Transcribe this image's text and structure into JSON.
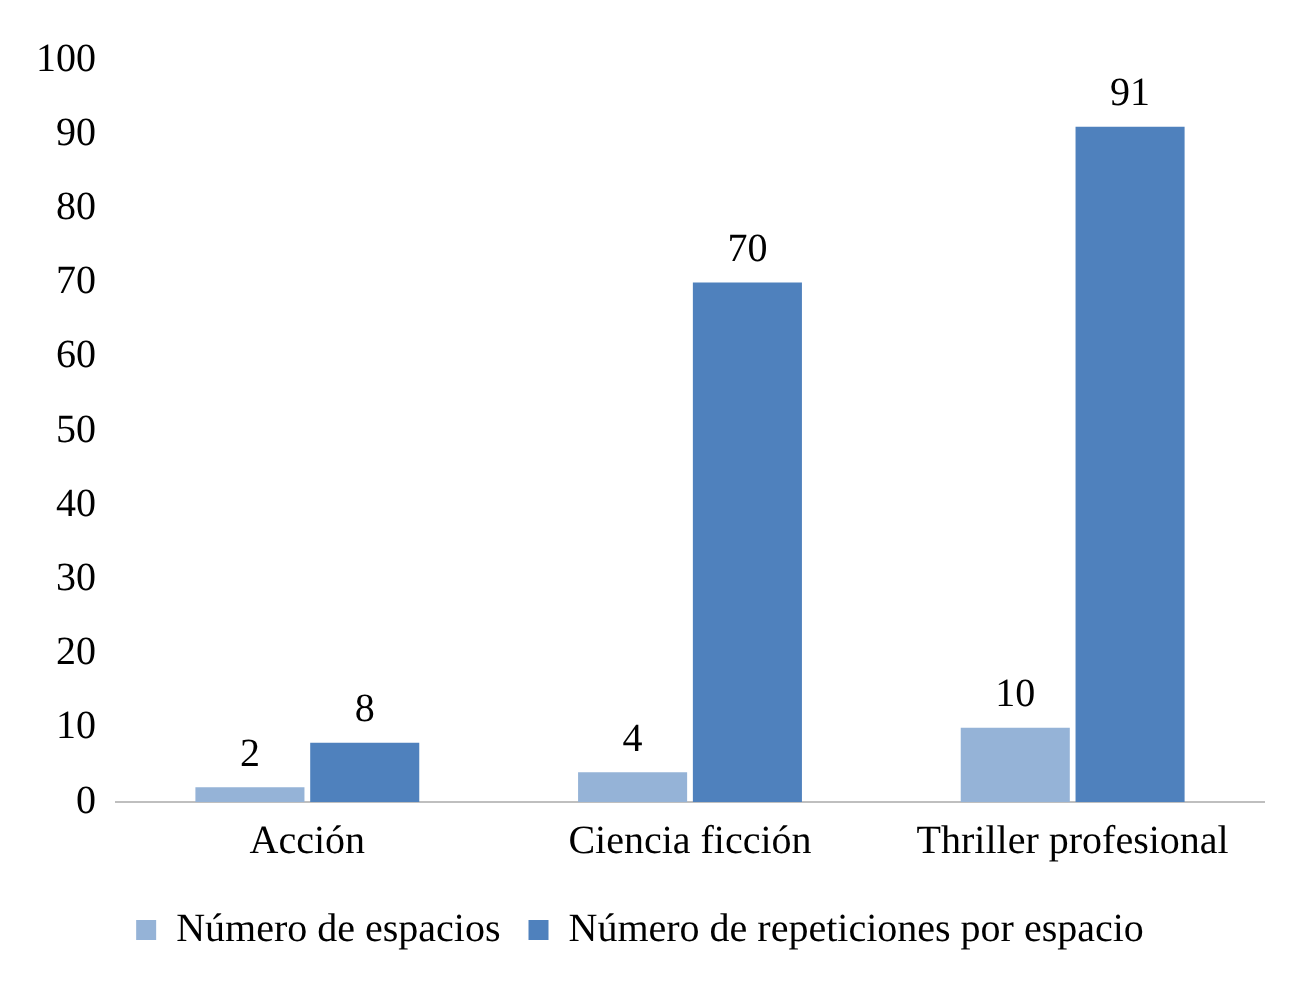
{
  "chart_data": {
    "type": "bar",
    "categories": [
      "Acción",
      "Ciencia ficción",
      "Thriller profesional"
    ],
    "series": [
      {
        "name": "Número de espacios",
        "color": "#95b3d7",
        "values": [
          2,
          4,
          10
        ]
      },
      {
        "name": "Número de repeticiones por espacio",
        "color": "#4f81bd",
        "values": [
          8,
          70,
          91
        ]
      }
    ],
    "ylim": [
      0,
      100
    ],
    "yticks": [
      0,
      10,
      20,
      30,
      40,
      50,
      60,
      70,
      80,
      90,
      100
    ],
    "grid": false,
    "legend": "bottom",
    "data_labels": true
  }
}
